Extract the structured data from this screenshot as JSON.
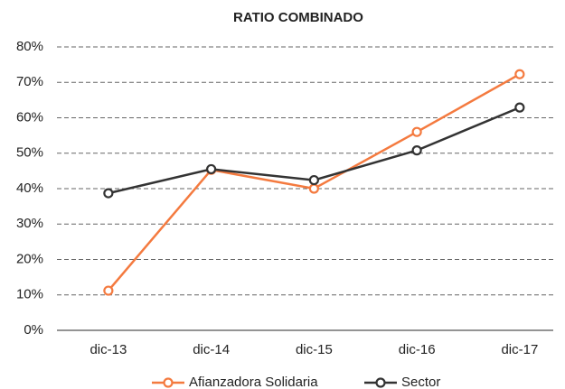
{
  "chart_data": {
    "type": "line",
    "title": "RATIO COMBINADO",
    "categories": [
      "dic-13",
      "dic-14",
      "dic-15",
      "dic-16",
      "dic-17"
    ],
    "series": [
      {
        "name": "Afianzadora Solidaria",
        "color": "#f47a3f",
        "values": [
          11.2,
          45.3,
          40.0,
          56.0,
          72.3
        ]
      },
      {
        "name": "Sector",
        "color": "#333333",
        "values": [
          38.7,
          45.5,
          42.4,
          50.8,
          62.9
        ]
      }
    ],
    "ylim": [
      0,
      80
    ],
    "yticks": [
      {
        "value": 0,
        "label": "0%"
      },
      {
        "value": 10,
        "label": "10%"
      },
      {
        "value": 20,
        "label": "20%"
      },
      {
        "value": 30,
        "label": "30%"
      },
      {
        "value": 40,
        "label": "40%"
      },
      {
        "value": 50,
        "label": "50%"
      },
      {
        "value": 60,
        "label": "60%"
      },
      {
        "value": 70,
        "label": "70%"
      },
      {
        "value": 80,
        "label": "80%"
      }
    ],
    "grid": true,
    "legend": "bottom"
  }
}
